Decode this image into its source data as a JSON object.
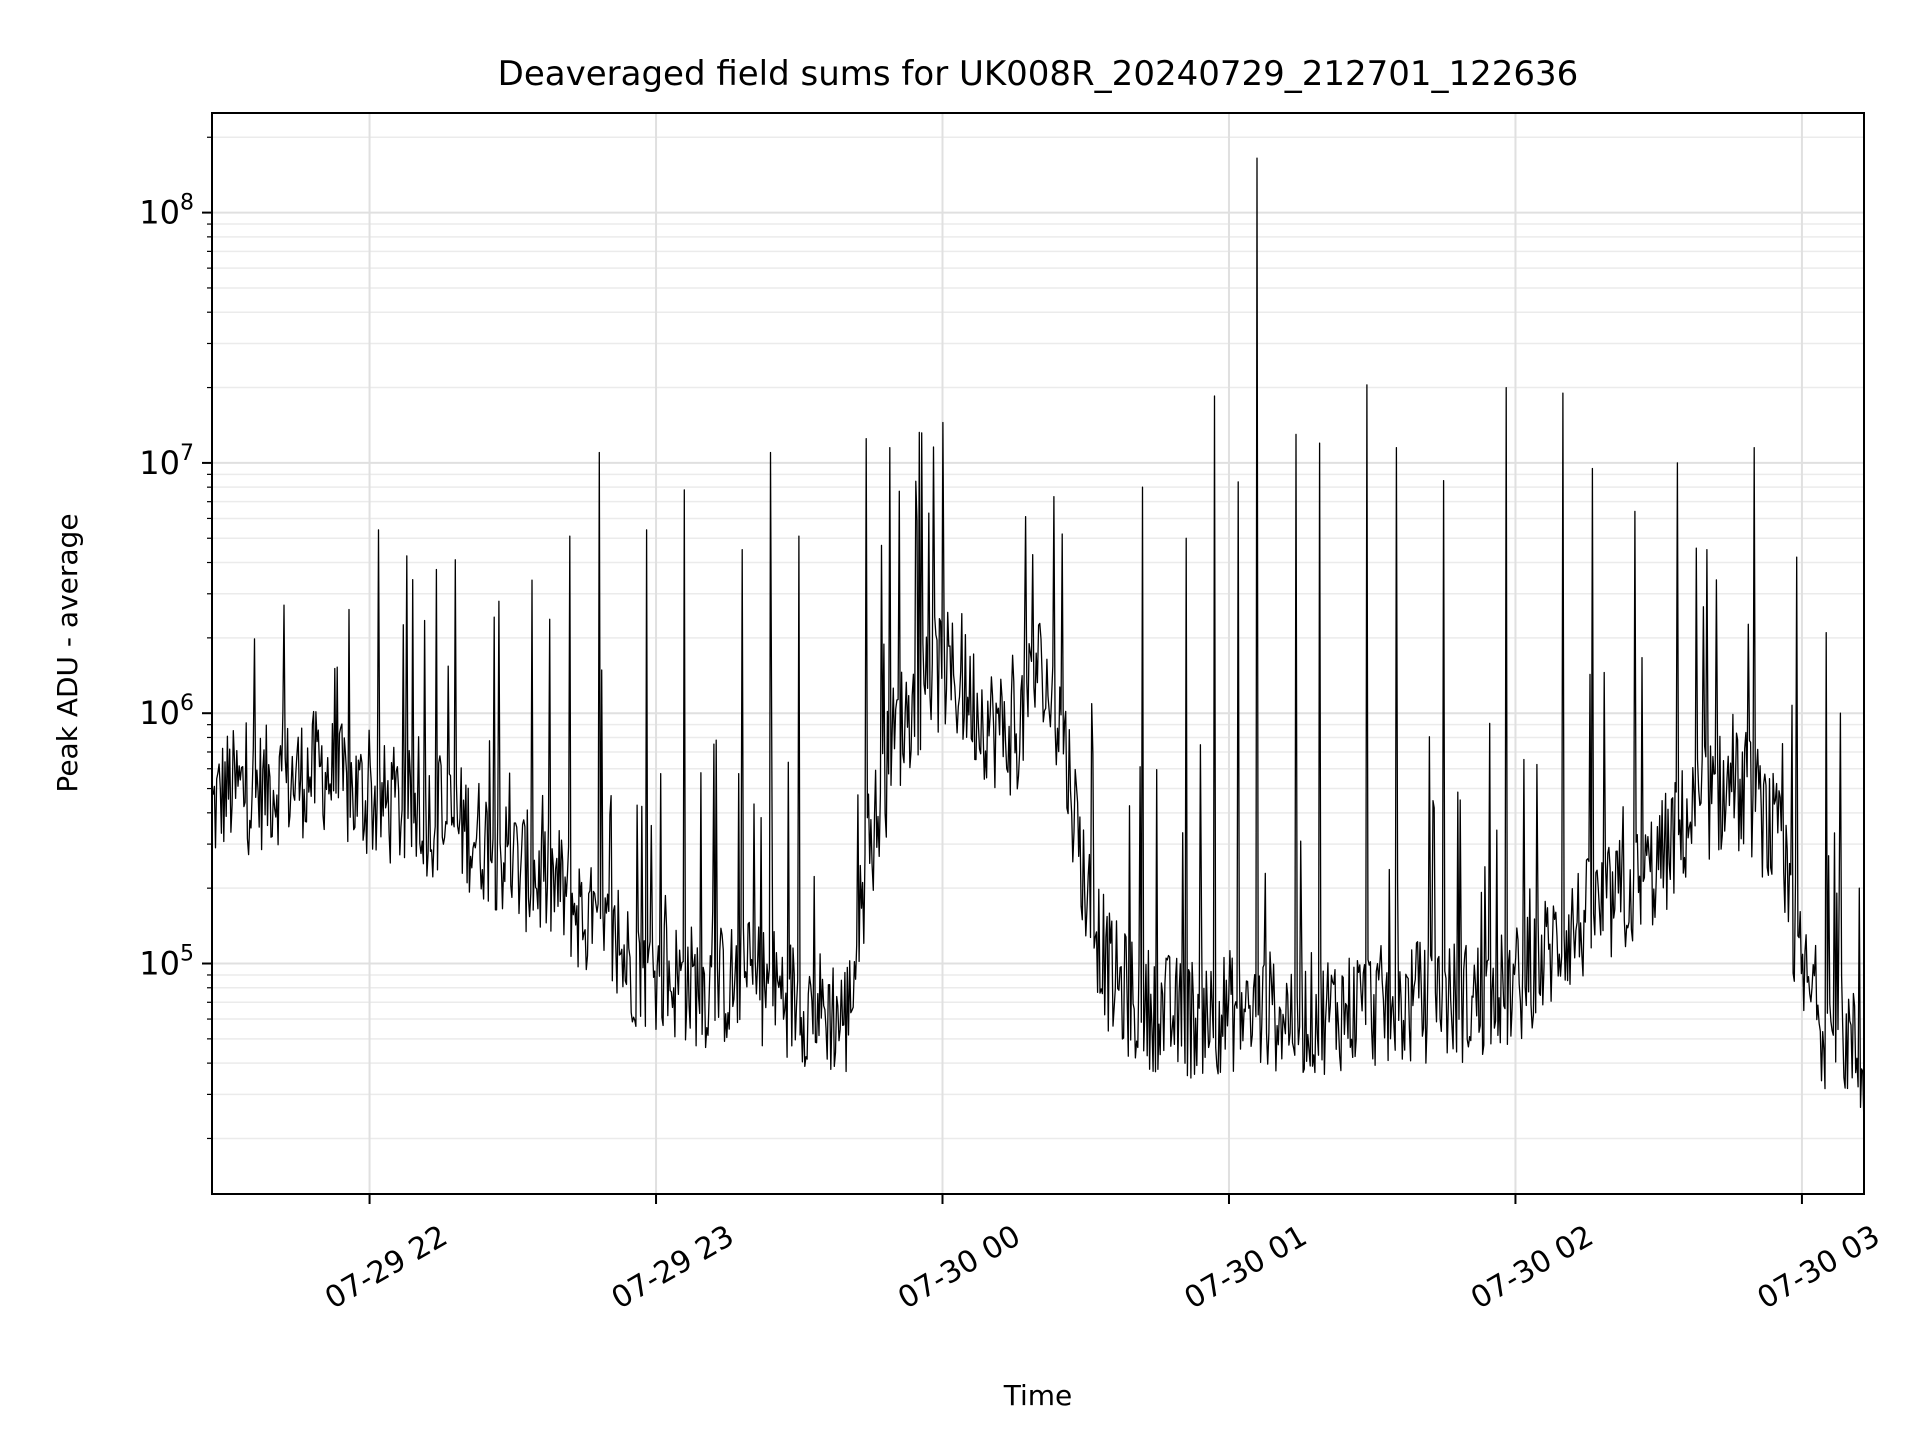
{
  "chart_data": {
    "type": "line",
    "title": "Deaveraged field sums for UK008R_20240729_212701_122636",
    "xlabel": "Time",
    "ylabel": "Peak ADU - average",
    "yscale": "log",
    "grid": "on (major and minor)",
    "line_color": "#000000",
    "xlim": [
      "2024-07-29 21:27",
      "2024-07-30 03:13"
    ],
    "ylim": [
      12000,
      250000000
    ],
    "x_ticks": [
      "07-29 22",
      "07-29 23",
      "07-30 00",
      "07-30 01",
      "07-30 02",
      "07-30 03"
    ],
    "y_ticks": [
      {
        "base": "10",
        "exp": "5"
      },
      {
        "base": "10",
        "exp": "6"
      },
      {
        "base": "10",
        "exp": "7"
      },
      {
        "base": "10",
        "exp": "8"
      }
    ],
    "series": [
      {
        "x": [
          "2024-07-29 21:27",
          "2024-07-29 21:30",
          "2024-07-29 21:35",
          "2024-07-29 21:40",
          "2024-07-29 21:45",
          "2024-07-29 21:50",
          "2024-07-29 21:55",
          "2024-07-29 22:00",
          "2024-07-29 22:05",
          "2024-07-29 22:10",
          "2024-07-29 22:15",
          "2024-07-29 22:20",
          "2024-07-29 22:25",
          "2024-07-29 22:30",
          "2024-07-29 22:35",
          "2024-07-29 22:40",
          "2024-07-29 22:45",
          "2024-07-29 22:50",
          "2024-07-29 22:55",
          "2024-07-29 23:00",
          "2024-07-29 23:05",
          "2024-07-29 23:10",
          "2024-07-29 23:15",
          "2024-07-29 23:20",
          "2024-07-29 23:25",
          "2024-07-29 23:30",
          "2024-07-29 23:35",
          "2024-07-29 23:40",
          "2024-07-29 23:45",
          "2024-07-29 23:50",
          "2024-07-29 23:55",
          "2024-07-30 00:00",
          "2024-07-30 00:05",
          "2024-07-30 00:10",
          "2024-07-30 00:15",
          "2024-07-30 00:20",
          "2024-07-30 00:25",
          "2024-07-30 00:30",
          "2024-07-30 00:35",
          "2024-07-30 00:40",
          "2024-07-30 00:45",
          "2024-07-30 00:50",
          "2024-07-30 00:55",
          "2024-07-30 01:00",
          "2024-07-30 01:05",
          "2024-07-30 01:10",
          "2024-07-30 01:15",
          "2024-07-30 01:20",
          "2024-07-30 01:25",
          "2024-07-30 01:30",
          "2024-07-30 01:35",
          "2024-07-30 01:40",
          "2024-07-30 01:45",
          "2024-07-30 01:50",
          "2024-07-30 01:55",
          "2024-07-30 02:00",
          "2024-07-30 02:05",
          "2024-07-30 02:10",
          "2024-07-30 02:15",
          "2024-07-30 02:20",
          "2024-07-30 02:25",
          "2024-07-30 02:30",
          "2024-07-30 02:35",
          "2024-07-30 02:40",
          "2024-07-30 02:45",
          "2024-07-30 02:50",
          "2024-07-30 02:55",
          "2024-07-30 03:00",
          "2024-07-30 03:05",
          "2024-07-30 03:10",
          "2024-07-30 03:13"
        ],
        "y": [
          400000,
          500000,
          480000,
          520000,
          550000,
          600000,
          500000,
          450000,
          420000,
          400000,
          380000,
          350000,
          300000,
          250000,
          220000,
          200000,
          150000,
          120000,
          100000,
          90000,
          85000,
          80000,
          82000,
          85000,
          80000,
          70000,
          65000,
          60000,
          300000,
          800000,
          1200000,
          1500000,
          1200000,
          900000,
          800000,
          1500000,
          900000,
          200000,
          90000,
          70000,
          65000,
          60000,
          62000,
          65000,
          63000,
          65000,
          62000,
          64000,
          66000,
          68000,
          65000,
          70000,
          72000,
          70000,
          75000,
          80000,
          100000,
          130000,
          150000,
          170000,
          200000,
          250000,
          350000,
          450000,
          500000,
          450000,
          300000,
          90000,
          55000,
          50000,
          35000
        ],
        "spikes": [
          {
            "x": "2024-07-29 21:42",
            "y": 2700000
          },
          {
            "x": "2024-07-29 22:18",
            "y": 4100000
          },
          {
            "x": "2024-07-29 22:27",
            "y": 2800000
          },
          {
            "x": "2024-07-29 22:34",
            "y": 3400000
          },
          {
            "x": "2024-07-29 22:42",
            "y": 5100000
          },
          {
            "x": "2024-07-29 22:48",
            "y": 11000000
          },
          {
            "x": "2024-07-29 22:58",
            "y": 5400000
          },
          {
            "x": "2024-07-29 23:06",
            "y": 7800000
          },
          {
            "x": "2024-07-29 23:18",
            "y": 4500000
          },
          {
            "x": "2024-07-29 23:24",
            "y": 11000000
          },
          {
            "x": "2024-07-29 23:30",
            "y": 5100000
          },
          {
            "x": "2024-07-29 23:44",
            "y": 12500000
          },
          {
            "x": "2024-07-29 23:49",
            "y": 11500000
          },
          {
            "x": "2024-07-29 23:51",
            "y": 7700000
          },
          {
            "x": "2024-07-29 23:57",
            "y": 6300000
          },
          {
            "x": "2024-07-30 00:00",
            "y": 14500000
          },
          {
            "x": "2024-07-30 00:04",
            "y": 2500000
          },
          {
            "x": "2024-07-30 00:19",
            "y": 4300000
          },
          {
            "x": "2024-07-30 00:25",
            "y": 5200000
          },
          {
            "x": "2024-07-30 00:42",
            "y": 8000000
          },
          {
            "x": "2024-07-30 00:51",
            "y": 5000000
          },
          {
            "x": "2024-07-30 00:57",
            "y": 18500000
          },
          {
            "x": "2024-07-30 01:02",
            "y": 8400000
          },
          {
            "x": "2024-07-30 01:06",
            "y": 165000000
          },
          {
            "x": "2024-07-30 01:14",
            "y": 13000000
          },
          {
            "x": "2024-07-30 01:19",
            "y": 12000000
          },
          {
            "x": "2024-07-30 01:29",
            "y": 20500000
          },
          {
            "x": "2024-07-30 01:35",
            "y": 11500000
          },
          {
            "x": "2024-07-30 01:45",
            "y": 8500000
          },
          {
            "x": "2024-07-30 01:58",
            "y": 20000000
          },
          {
            "x": "2024-07-30 02:10",
            "y": 19000000
          },
          {
            "x": "2024-07-30 02:16",
            "y": 9500000
          },
          {
            "x": "2024-07-30 02:25",
            "y": 6400000
          },
          {
            "x": "2024-07-30 02:34",
            "y": 10000000
          },
          {
            "x": "2024-07-30 02:40",
            "y": 4500000
          },
          {
            "x": "2024-07-30 02:50",
            "y": 11500000
          },
          {
            "x": "2024-07-30 02:59",
            "y": 4200000
          },
          {
            "x": "2024-07-30 03:05",
            "y": 2100000
          },
          {
            "x": "2024-07-30 03:08",
            "y": 1000000
          },
          {
            "x": "2024-07-30 03:12",
            "y": 200000
          }
        ]
      }
    ]
  }
}
